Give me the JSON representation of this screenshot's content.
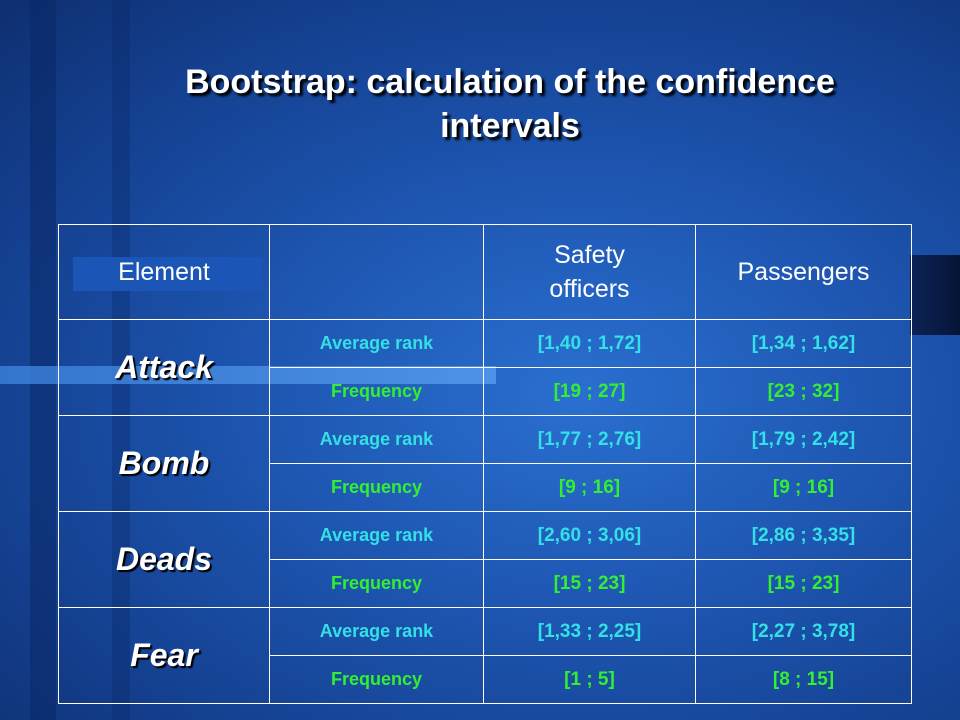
{
  "slide": {
    "title_line1": "Bootstrap: calculation of the confidence",
    "title_line2": "intervals",
    "colors": {
      "rank": "#33e0e6",
      "frequency": "#33ee33",
      "text": "#ffffff"
    }
  },
  "table": {
    "headers": {
      "element": "Element",
      "metric": "",
      "safety_line1": "Safety",
      "safety_line2": "officers",
      "passengers": "Passengers"
    },
    "rows": [
      {
        "element": "Attack",
        "rank_label": "Average rank",
        "rank_safety": "[1,40 ; 1,72]",
        "rank_passengers": "[1,34 ; 1,62]",
        "freq_label": "Frequency",
        "freq_safety": "[19 ; 27]",
        "freq_passengers": "[23 ; 32]"
      },
      {
        "element": "Bomb",
        "rank_label": "Average rank",
        "rank_safety": "[1,77 ; 2,76]",
        "rank_passengers": "[1,79 ; 2,42]",
        "freq_label": "Frequency",
        "freq_safety": "[9 ; 16]",
        "freq_passengers": "[9 ; 16]"
      },
      {
        "element": "Deads",
        "rank_label": "Average rank",
        "rank_safety": "[2,60 ; 3,06]",
        "rank_passengers": "[2,86 ; 3,35]",
        "freq_label": "Frequency",
        "freq_safety": "[15 ; 23]",
        "freq_passengers": "[15 ; 23]"
      },
      {
        "element": "Fear",
        "rank_label": "Average rank",
        "rank_safety": "[1,33 ; 2,25]",
        "rank_passengers": "[2,27 ; 3,78]",
        "freq_label": "Frequency",
        "freq_safety": "[1 ; 5]",
        "freq_passengers": "[8 ; 15]"
      }
    ]
  }
}
